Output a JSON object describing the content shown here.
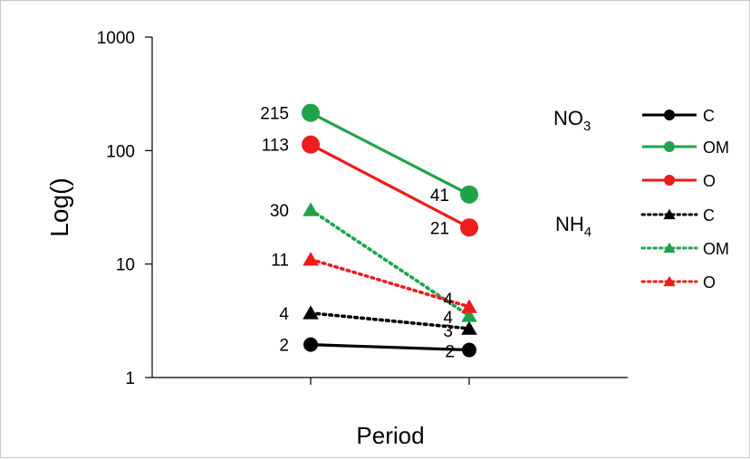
{
  "chart_data": {
    "type": "line",
    "ylabel": "Log()",
    "xlabel": "Period",
    "yscale": "log",
    "ylim": [
      1,
      1000
    ],
    "y_ticks": [
      "1",
      "10",
      "100",
      "1000"
    ],
    "x": [
      1,
      2
    ],
    "group_labels": {
      "no3": {
        "main": "NO",
        "sub": "3"
      },
      "nh4": {
        "main": "NH",
        "sub": "4"
      }
    },
    "series": [
      {
        "name": "C",
        "group": "NO3",
        "values": [
          1.95,
          1.75
        ],
        "labels": [
          "2",
          "2"
        ],
        "color": "#000000",
        "dash": "solid",
        "marker": "circle"
      },
      {
        "name": "OM",
        "group": "NO3",
        "values": [
          215,
          41
        ],
        "labels": [
          "215",
          "41"
        ],
        "color": "#1fa34a",
        "dash": "solid",
        "marker": "circle"
      },
      {
        "name": "O",
        "group": "NO3",
        "values": [
          113,
          21
        ],
        "labels": [
          "113",
          "21"
        ],
        "color": "#ee1c1c",
        "dash": "solid",
        "marker": "circle"
      },
      {
        "name": "C",
        "group": "NH4",
        "values": [
          3.7,
          2.7
        ],
        "labels": [
          "4",
          "3"
        ],
        "color": "#000000",
        "dash": "dotted",
        "marker": "triangle"
      },
      {
        "name": "OM",
        "group": "NH4",
        "values": [
          30,
          3.5
        ],
        "labels": [
          "30",
          "4"
        ],
        "color": "#1fa34a",
        "dash": "dotted",
        "marker": "triangle"
      },
      {
        "name": "O",
        "group": "NH4",
        "values": [
          11,
          4.2
        ],
        "labels": [
          "11",
          "4"
        ],
        "color": "#ee1c1c",
        "dash": "dotted",
        "marker": "triangle"
      }
    ],
    "legend_position": "right",
    "grid": false
  }
}
